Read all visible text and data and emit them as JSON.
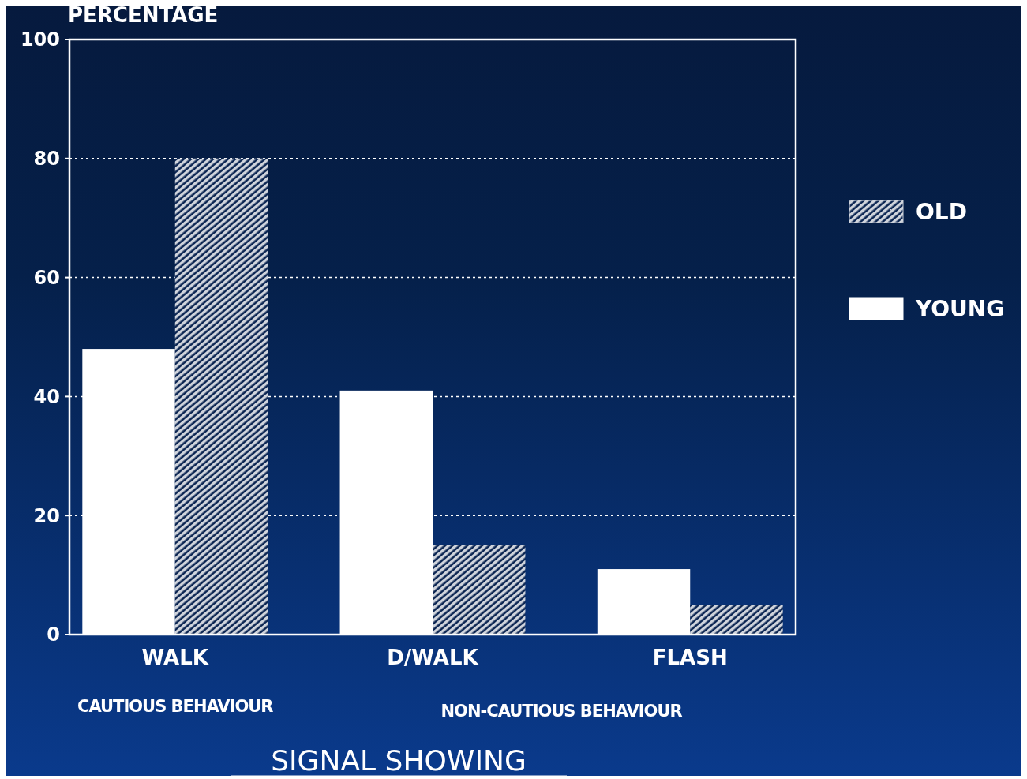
{
  "chart_data": {
    "type": "bar",
    "ylabel": "PERCENTAGE",
    "xlabel": "SIGNAL SHOWING",
    "categories": [
      "WALK",
      "D/WALK",
      "FLASH"
    ],
    "series": [
      {
        "name": "YOUNG",
        "color": "#ffffff",
        "values": [
          48,
          41,
          11
        ]
      },
      {
        "name": "OLD",
        "color": "#d0d4dc",
        "values": [
          80,
          15,
          5
        ]
      }
    ],
    "ylim": [
      0,
      100
    ],
    "yticks": [
      0,
      20,
      40,
      60,
      80,
      100
    ],
    "grid": "y",
    "legend": "right",
    "annotations": [
      "CAUTIOUS BEHAVIOUR",
      "NON-CAUTIOUS BEHAVIOUR"
    ]
  }
}
